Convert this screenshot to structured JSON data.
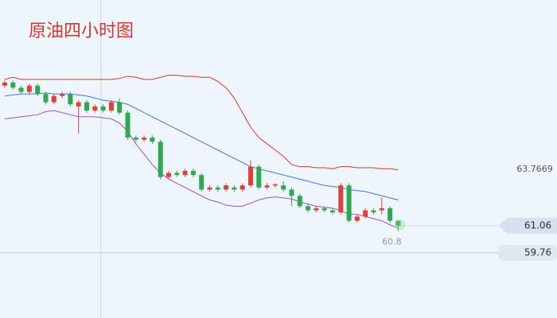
{
  "chart_data": {
    "type": "candlestick",
    "title": "原油四小时图",
    "open": [
      67.8,
      67.95,
      67.7,
      67.5,
      67.8,
      67.4,
      67.0,
      67.3,
      67.4,
      66.8,
      67.0,
      66.6,
      66.8,
      66.6,
      67.0,
      66.5,
      65.3,
      65.2,
      65.3,
      65.1,
      63.4,
      63.6,
      63.5,
      63.7,
      63.5,
      62.8,
      62.9,
      62.8,
      62.9,
      62.8,
      63.0,
      63.9,
      62.9,
      63.0,
      63.0,
      62.8,
      62.5,
      62.0,
      61.8,
      61.9,
      61.8,
      61.7,
      63.0,
      61.3,
      61.5,
      61.8,
      61.8,
      61.9,
      61.3
    ],
    "high": [
      68.05,
      68.05,
      67.8,
      67.9,
      67.9,
      67.5,
      67.4,
      67.5,
      67.5,
      67.1,
      67.1,
      66.9,
      66.9,
      67.1,
      67.2,
      66.6,
      65.4,
      65.4,
      65.4,
      65.2,
      63.7,
      63.7,
      63.8,
      63.8,
      63.6,
      63.0,
      63.0,
      63.1,
      63.0,
      63.1,
      64.2,
      64.0,
      63.1,
      63.1,
      63.2,
      62.9,
      62.6,
      62.1,
      62.0,
      62.0,
      61.9,
      63.1,
      63.1,
      61.6,
      61.9,
      61.9,
      62.4,
      62.0,
      61.3
    ],
    "low": [
      67.7,
      67.6,
      67.4,
      67.4,
      67.3,
      66.9,
      66.9,
      67.2,
      66.8,
      65.5,
      66.5,
      66.5,
      66.5,
      66.5,
      66.4,
      65.2,
      65.1,
      65.1,
      65.0,
      63.3,
      63.3,
      63.4,
      63.4,
      63.4,
      62.7,
      62.7,
      62.7,
      62.7,
      62.7,
      62.7,
      62.9,
      62.8,
      62.8,
      62.9,
      62.7,
      62.0,
      61.9,
      61.7,
      61.7,
      61.7,
      61.6,
      61.6,
      61.2,
      61.2,
      61.4,
      61.6,
      61.6,
      61.2,
      60.8
    ],
    "close": [
      67.95,
      67.7,
      67.5,
      67.8,
      67.4,
      67.0,
      67.3,
      67.4,
      66.9,
      67.0,
      66.6,
      66.8,
      66.6,
      67.0,
      66.5,
      65.3,
      65.2,
      65.3,
      65.1,
      63.4,
      63.6,
      63.5,
      63.7,
      63.5,
      62.8,
      62.9,
      62.8,
      63.0,
      62.8,
      63.0,
      63.9,
      62.9,
      63.0,
      63.05,
      62.8,
      62.5,
      62.0,
      61.8,
      61.9,
      61.8,
      61.7,
      63.0,
      61.3,
      61.5,
      61.8,
      61.7,
      61.9,
      61.3,
      61.06
    ],
    "up_color": "#e0403a",
    "down_color": "#2fa84f",
    "bands": [
      {
        "color": "#d9352b",
        "values": [
          68.1,
          68.2,
          68.1,
          68.1,
          68.1,
          68.1,
          68.1,
          68.1,
          68.1,
          68.1,
          68.1,
          68.1,
          68.1,
          68.1,
          68.15,
          68.25,
          68.2,
          68.1,
          68.1,
          68.2,
          68.3,
          68.3,
          68.25,
          68.25,
          68.2,
          68.2,
          68.0,
          67.7,
          67.2,
          66.5,
          65.8,
          65.3,
          65.0,
          64.7,
          64.4,
          64.0,
          63.9,
          63.9,
          63.85,
          63.85,
          63.8,
          63.9,
          63.9,
          63.85,
          63.85,
          63.85,
          63.8,
          63.8,
          63.75
        ]
      },
      {
        "color": "#3b78e0",
        "values": [
          67.3,
          67.35,
          67.4,
          67.4,
          67.4,
          67.45,
          67.4,
          67.4,
          67.4,
          67.35,
          67.3,
          67.2,
          67.1,
          67.05,
          67.0,
          66.9,
          66.7,
          66.5,
          66.3,
          66.1,
          65.9,
          65.7,
          65.5,
          65.3,
          65.1,
          64.9,
          64.7,
          64.5,
          64.3,
          64.1,
          63.9,
          63.8,
          63.7,
          63.6,
          63.5,
          63.4,
          63.3,
          63.2,
          63.1,
          63.0,
          62.95,
          62.9,
          62.8,
          62.75,
          62.7,
          62.6,
          62.5,
          62.4,
          62.3
        ]
      },
      {
        "color": "#9a4fd6",
        "values": [
          66.2,
          66.25,
          66.3,
          66.35,
          66.4,
          66.55,
          66.6,
          66.5,
          66.4,
          66.3,
          66.3,
          66.3,
          66.25,
          66.2,
          66.0,
          65.6,
          65.0,
          64.5,
          64.0,
          63.6,
          63.3,
          63.1,
          62.9,
          62.7,
          62.5,
          62.3,
          62.2,
          62.05,
          62.0,
          62.0,
          62.15,
          62.3,
          62.4,
          62.45,
          62.4,
          62.35,
          62.2,
          62.1,
          62.0,
          61.95,
          61.9,
          61.8,
          61.6,
          61.6,
          61.5,
          61.4,
          61.3,
          61.1,
          60.95
        ]
      }
    ],
    "ylim": [
      56.62,
      71.92
    ],
    "band_label": 63.7669,
    "current_price": 61.06,
    "support_price": 59.76,
    "low_label": "60.8"
  }
}
